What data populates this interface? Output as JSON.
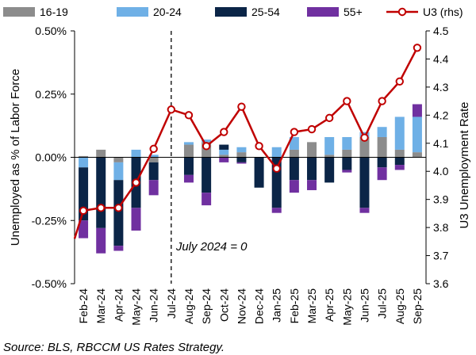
{
  "chart_data": {
    "type": "bar",
    "subtype": "stacked bar + line (secondary axis)",
    "categories": [
      "Feb-24",
      "Mar-24",
      "Apr-24",
      "May-24",
      "Jun-24",
      "Jul-24",
      "Aug-24",
      "Sep-24",
      "Oct-24",
      "Nov-24",
      "Dec-24",
      "Jan-25",
      "Feb-25",
      "Mar-25",
      "Apr-25",
      "May-25",
      "Jun-25",
      "Jul-25",
      "Aug-25",
      "Sep-25"
    ],
    "series": [
      {
        "name": "16-19",
        "color": "#8c8c8c",
        "axis": "left",
        "values": [
          0.005,
          0.03,
          -0.02,
          0.0,
          -0.02,
          0,
          0.05,
          0.06,
          0.01,
          0.02,
          0.0,
          0.0,
          0.03,
          0.06,
          0.01,
          0.03,
          0.08,
          0.08,
          0.03,
          0.02
        ]
      },
      {
        "name": "20-24",
        "color": "#6fb0e6",
        "axis": "left",
        "values": [
          -0.04,
          0.0,
          -0.07,
          0.03,
          0.01,
          0,
          0.01,
          0.01,
          0.02,
          0.02,
          0.0,
          0.04,
          0.05,
          0.0,
          0.07,
          0.05,
          0.02,
          0.04,
          0.13,
          0.14
        ]
      },
      {
        "name": "25-54",
        "color": "#0b2547",
        "axis": "left",
        "values": [
          -0.21,
          -0.28,
          -0.26,
          -0.2,
          -0.07,
          0,
          -0.07,
          -0.14,
          0.02,
          -0.02,
          -0.12,
          -0.2,
          -0.09,
          -0.09,
          -0.1,
          -0.05,
          -0.2,
          -0.04,
          -0.03,
          0.0
        ]
      },
      {
        "name": "55+",
        "color": "#7030a0",
        "axis": "left",
        "values": [
          -0.07,
          -0.1,
          -0.02,
          -0.09,
          -0.06,
          0,
          -0.03,
          -0.05,
          -0.02,
          -0.005,
          0.0,
          -0.02,
          -0.05,
          -0.04,
          0.0,
          -0.01,
          -0.02,
          -0.05,
          -0.02,
          0.05
        ]
      },
      {
        "name": "U3 (rhs)",
        "color": "#c00000",
        "axis": "right",
        "type": "line",
        "values": [
          3.86,
          3.87,
          3.87,
          3.96,
          4.08,
          4.22,
          4.2,
          4.09,
          4.14,
          4.23,
          4.09,
          4.01,
          4.14,
          4.15,
          4.19,
          4.25,
          4.12,
          4.25,
          4.32,
          4.44
        ]
      }
    ],
    "line_start_value": 3.76,
    "ylim": [
      -0.5,
      0.5
    ],
    "yticks": [
      "0.50%",
      "0.25%",
      "0.00%",
      "-0.25%",
      "-0.50%"
    ],
    "y2lim": [
      3.6,
      4.5
    ],
    "y2ticks": [
      "4.5",
      "4.4",
      "4.3",
      "4.2",
      "4.1",
      "4.0",
      "3.9",
      "3.8",
      "3.7",
      "3.6"
    ],
    "ylabel": "Unemployed as % of Labor Force",
    "y2label": "U3 Unemployment Rate",
    "annotation": {
      "text": "July 2024 = 0",
      "at_category": "Jul-24"
    },
    "legend": "top",
    "source": "Source: BLS, RBCCM US Rates Strategy."
  }
}
